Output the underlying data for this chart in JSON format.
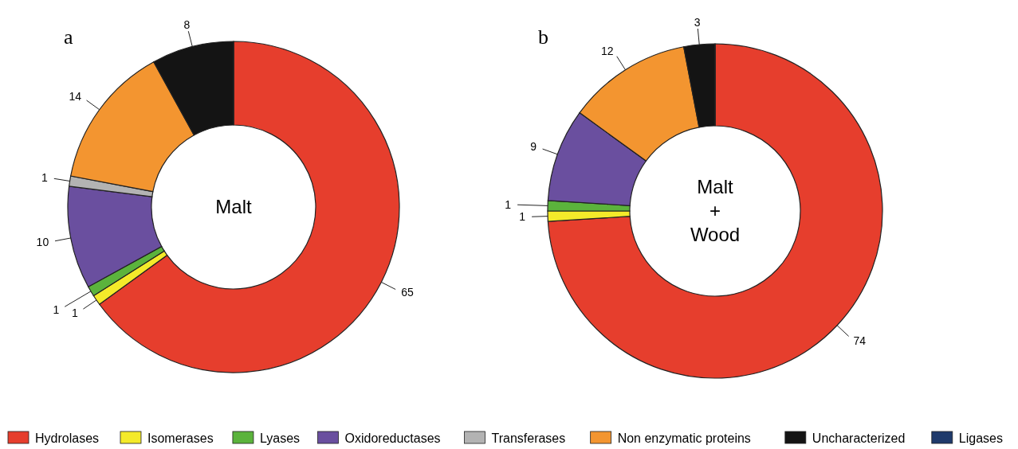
{
  "chart_data": [
    {
      "type": "donut",
      "title": "a",
      "annotations": [
        "Malt"
      ],
      "categories": [
        "Hydrolases",
        "Isomerases",
        "Lyases",
        "Oxidoreductases",
        "Transferases",
        "Non enzymatic proteins",
        "Uncharacterized",
        "Ligases"
      ],
      "values": [
        65,
        1,
        1,
        10,
        1,
        14,
        8,
        0
      ],
      "colors": [
        "#e63e2d",
        "#f4ea2a",
        "#5bb33c",
        "#6a4f9f",
        "#b3b3b3",
        "#f39530",
        "#141414",
        "#1f3a6b"
      ],
      "data_labels": true,
      "legend": "bottom"
    },
    {
      "type": "donut",
      "title": "b",
      "annotations": [
        "Malt",
        "+",
        "Wood"
      ],
      "categories": [
        null,
        null,
        null,
        null,
        null,
        null,
        null,
        null
      ],
      "values": [
        74,
        1,
        1,
        9,
        0,
        12,
        3,
        0
      ],
      "colors": [
        "#e63e2d",
        "#f4ea2a",
        "#5bb33c",
        "#6a4f9f",
        "#b3b3b3",
        "#f39530",
        "#141414",
        "#1f3a6b"
      ],
      "data_labels": true
    }
  ]
}
